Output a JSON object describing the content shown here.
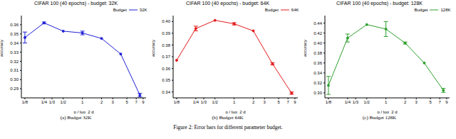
{
  "figure_caption": "Figure 2: Error bars for different parameter budget.",
  "chart_data": [
    {
      "type": "line",
      "title": "CIFAR 100 (40 epochs) - budget: 32K",
      "caption": "(a) Budget 32K",
      "x_label": "p / log_2 d",
      "y_label": "accuracy",
      "log": "x",
      "x": [
        0.125,
        0.25,
        0.5,
        1,
        2,
        4,
        8
      ],
      "xlim": [
        0.11,
        10
      ],
      "xticks": [
        {
          "value": 0.125,
          "label": "1/8"
        },
        {
          "value": 0.25,
          "label": "1/4"
        },
        {
          "value": 0.3333,
          "label": "1/3"
        },
        {
          "value": 0.5,
          "label": "1/2"
        },
        1,
        2,
        3,
        5,
        7,
        9
      ],
      "ylim": [
        0.28,
        0.37
      ],
      "yticks": [
        0.29,
        {
          "value": 0.3,
          "label": "0.30"
        },
        0.31,
        0.32,
        0.33,
        0.34,
        0.35,
        0.36
      ],
      "legend": "upper right",
      "legend_title": "Budget",
      "series": [
        {
          "name": "32K",
          "color": "#1f1fd6",
          "marker": "o",
          "line_style": "solid",
          "values": [
            0.346,
            0.362,
            0.353,
            0.351,
            0.345,
            0.328,
            0.283
          ],
          "error": [
            0.006,
            0.001,
            0,
            0.002,
            0,
            0,
            0.002
          ]
        }
      ]
    },
    {
      "type": "line",
      "title": "CIFAR 100 (40 epochs) - budget: 64K",
      "caption": "(b) Budget 64K",
      "x_label": "p / log_2 d",
      "y_label": "accuracy",
      "log": "x",
      "x": [
        0.125,
        0.25,
        0.5,
        1,
        2,
        4,
        8
      ],
      "xlim": [
        0.11,
        10
      ],
      "xticks": [
        {
          "value": 0.125,
          "label": "1/8"
        },
        {
          "value": 0.25,
          "label": "1/4"
        },
        {
          "value": 0.3333,
          "label": "1/3"
        },
        {
          "value": 0.5,
          "label": "1/2"
        },
        1,
        2,
        3,
        5,
        7,
        9
      ],
      "ylim": [
        0.335,
        0.405
      ],
      "yticks": [
        0.34,
        0.35,
        0.36,
        0.37,
        0.38,
        0.39,
        {
          "value": 0.4,
          "label": "0.40"
        }
      ],
      "legend": "upper right",
      "legend_title": "Budget",
      "series": [
        {
          "name": "64K",
          "color": "#e41a1c",
          "marker": "o",
          "line_style": "solid",
          "values": [
            0.367,
            0.394,
            0.401,
            0.398,
            0.392,
            0.364,
            0.339
          ],
          "error": [
            0,
            0.002,
            0,
            0.001,
            0,
            0.001,
            0.001
          ]
        }
      ]
    },
    {
      "type": "line",
      "title": "CIFAR 100 (40 epochs) - budget: 128K",
      "caption": "(c) Budget 128K",
      "x_label": "p / log_2 d",
      "y_label": "accuracy",
      "log": "x",
      "x": [
        0.125,
        0.25,
        0.5,
        1,
        2,
        4,
        8
      ],
      "xlim": [
        0.11,
        10
      ],
      "xticks": [
        {
          "value": 0.125,
          "label": "1/8"
        },
        {
          "value": 0.25,
          "label": "1/4"
        },
        {
          "value": 0.3333,
          "label": "1/3"
        },
        {
          "value": 0.5,
          "label": "1/2"
        },
        1,
        2,
        3,
        5,
        7,
        9
      ],
      "ylim": [
        0.29,
        0.455
      ],
      "yticks": [
        {
          "value": 0.3,
          "label": "0.30"
        },
        0.32,
        0.34,
        0.36,
        0.38,
        {
          "value": 0.4,
          "label": "0.40"
        },
        0.42,
        0.44
      ],
      "legend": "upper right",
      "legend_title": "Budget",
      "series": [
        {
          "name": "128K",
          "color": "#2ca02c",
          "marker": "o",
          "line_style": "solid",
          "values": [
            0.315,
            0.41,
            0.437,
            0.428,
            0.4,
            0.36,
            0.305
          ],
          "error": [
            0.018,
            0.008,
            0,
            0.015,
            0.002,
            0,
            0.004
          ]
        }
      ]
    }
  ]
}
